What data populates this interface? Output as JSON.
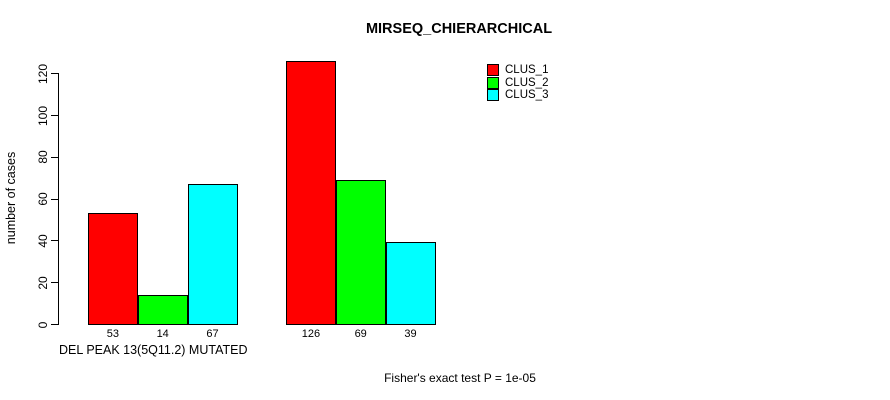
{
  "chart_data": {
    "type": "bar",
    "title": "MIRSEQ_CHIERARCHICAL",
    "ylabel": "number of cases",
    "xlabel": "DEL PEAK 13(5Q11.2) MUTATED",
    "footnote": "Fisher's exact test P = 1e-05",
    "ylim": [
      0,
      126
    ],
    "yticks": [
      0,
      20,
      40,
      60,
      80,
      100,
      120
    ],
    "grid": false,
    "legend_position": "top-right",
    "background_color": "#ffffff",
    "axis_color": "#000000",
    "series": [
      {
        "name": "CLUS_1",
        "color": "#FF0000",
        "values": [
          53,
          126
        ]
      },
      {
        "name": "CLUS_2",
        "color": "#00FF00",
        "values": [
          14,
          69
        ]
      },
      {
        "name": "CLUS_3",
        "color": "#00FFFF",
        "values": [
          67,
          39
        ]
      }
    ],
    "bar_labels": [
      [
        "53",
        "14",
        "67"
      ],
      [
        "126",
        "69",
        "39"
      ]
    ]
  }
}
